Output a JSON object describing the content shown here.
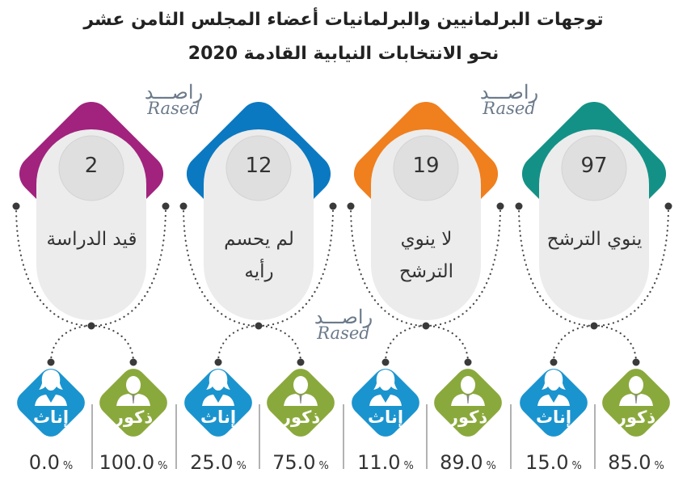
{
  "title_line1": "توجهات البرلمانيين والبرلمانيات أعضاء المجلس الثامن عشر",
  "title_line2": "نحو الانتخابات النيابية القادمة 2020",
  "watermark": {
    "arabic": "راصـــد",
    "english": "Rased"
  },
  "percent_sign": "%",
  "female_label": "إناث",
  "male_label": "ذكور",
  "colors": {
    "female": "#1a94cf",
    "male": "#8aa93c",
    "pill": "#ececec",
    "circle": "#e0dfdf"
  },
  "groups": [
    {
      "count": "2",
      "label": [
        "قيد الدراسة"
      ],
      "color": "#a1237e",
      "female_pct": "0.0",
      "male_pct": "100.0"
    },
    {
      "count": "12",
      "label": [
        "لم يحسم",
        "رأيه"
      ],
      "color": "#0b79c1",
      "female_pct": "25.0",
      "male_pct": "75.0"
    },
    {
      "count": "19",
      "label": [
        "لا ينوي",
        "الترشح"
      ],
      "color": "#f07f1e",
      "female_pct": "11.0",
      "male_pct": "89.0"
    },
    {
      "count": "97",
      "label": [
        "ينوي الترشح"
      ],
      "color": "#149187",
      "female_pct": "15.0",
      "male_pct": "85.0"
    }
  ]
}
